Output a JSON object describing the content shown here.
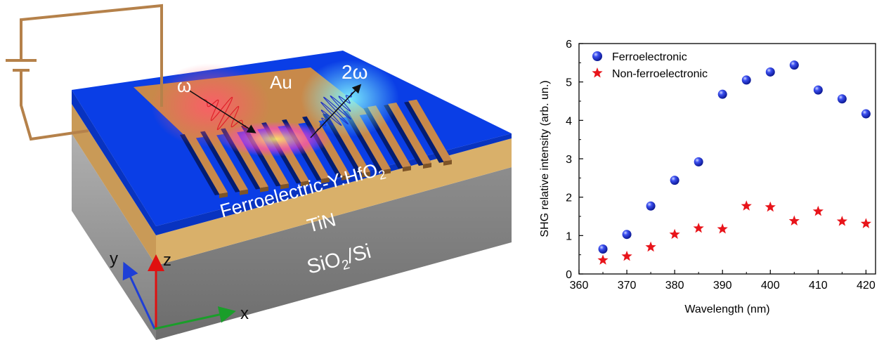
{
  "illustration": {
    "labels": {
      "omega": "ω",
      "two_omega": "2ω",
      "au": "Au",
      "ferro_main": "Ferroelectric-Y:HfO",
      "ferro_sub": "2",
      "tin": "TiN",
      "substrate_a": "SiO",
      "substrate_sub": "2",
      "substrate_b": "/Si"
    },
    "axes_labels": {
      "x": "x",
      "y": "y",
      "z": "z"
    },
    "colors": {
      "top_layer": "#0a3ee6",
      "electrode": "#c8894a",
      "tin_layer": "#d9b06a",
      "substrate": "#9a9a9a",
      "axis_x": "#1a9e2a",
      "axis_y": "#1f3fd6",
      "axis_z": "#e01010"
    }
  },
  "chart_data": {
    "type": "scatter",
    "xlabel": "Wavelength (nm)",
    "ylabel": "SHG relative intensity (arb. un.)",
    "xlim": [
      360,
      422
    ],
    "ylim": [
      0,
      6
    ],
    "xticks": [
      360,
      370,
      380,
      390,
      400,
      410,
      420
    ],
    "yticks": [
      0,
      1,
      2,
      3,
      4,
      5,
      6
    ],
    "legend_position": "top-left",
    "series": [
      {
        "name": "Ferroelectronic",
        "marker": "sphere",
        "color": "#1a2fd8",
        "x": [
          365,
          370,
          375,
          380,
          385,
          390,
          395,
          400,
          405,
          410,
          415,
          420
        ],
        "y": [
          0.65,
          1.03,
          1.77,
          2.44,
          2.92,
          4.68,
          5.05,
          5.26,
          5.44,
          4.79,
          4.56,
          4.17
        ]
      },
      {
        "name": "Non-ferroelectronic",
        "marker": "star",
        "color": "#e8141a",
        "x": [
          365,
          370,
          375,
          380,
          385,
          390,
          395,
          400,
          405,
          410,
          415,
          420
        ],
        "y": [
          0.36,
          0.46,
          0.7,
          1.03,
          1.19,
          1.17,
          1.77,
          1.74,
          1.38,
          1.63,
          1.37,
          1.31
        ]
      }
    ]
  }
}
